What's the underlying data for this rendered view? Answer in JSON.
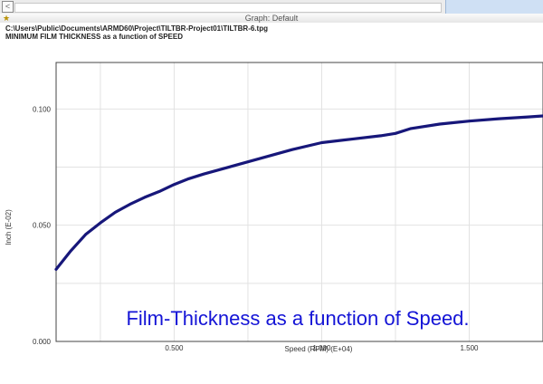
{
  "window": {
    "top_strip": {
      "scroll_arrow": "<"
    },
    "title": "Graph: Default",
    "file_path": "C:\\Users\\Public\\Documents\\ARMD60\\Project\\TILTBR-Project01\\TILTBR-6.tpg",
    "plot_heading": "MINIMUM FILM THICKNESS as a function of SPEED"
  },
  "colors": {
    "series": "#17177a",
    "annotation": "#1414d6",
    "grid": "#e2e2e2",
    "topbar_accent": "#cfe0f4"
  },
  "chart_data": {
    "type": "line",
    "title": "MINIMUM FILM THICKNESS as a function of SPEED",
    "xlabel": "Speed (RPM) (E+04)",
    "ylabel": "Inch (E-02)",
    "xlim": [
      0.1,
      1.75
    ],
    "ylim": [
      0.0,
      0.12
    ],
    "xticks": [
      0.5,
      1.0,
      1.5
    ],
    "xtick_labels": [
      "0.500",
      "1.000",
      "1.500"
    ],
    "yticks": [
      0.0,
      0.05,
      0.1
    ],
    "ytick_labels": [
      "0.000",
      "0.050",
      "0.100"
    ],
    "grid": true,
    "annotation": "Film-Thickness as a function of Speed.",
    "series": [
      {
        "x": [
          0.1,
          0.15,
          0.2,
          0.25,
          0.3,
          0.35,
          0.4,
          0.45,
          0.5,
          0.55,
          0.6,
          0.7,
          0.8,
          0.9,
          1.0,
          1.1,
          1.2,
          1.25,
          1.3,
          1.4,
          1.5,
          1.6,
          1.7,
          1.75
        ],
        "y": [
          0.031,
          0.039,
          0.046,
          0.051,
          0.0555,
          0.059,
          0.062,
          0.0645,
          0.0675,
          0.07,
          0.072,
          0.0755,
          0.079,
          0.0825,
          0.0855,
          0.087,
          0.0885,
          0.0895,
          0.0915,
          0.0935,
          0.0948,
          0.0958,
          0.0966,
          0.097
        ]
      }
    ]
  }
}
